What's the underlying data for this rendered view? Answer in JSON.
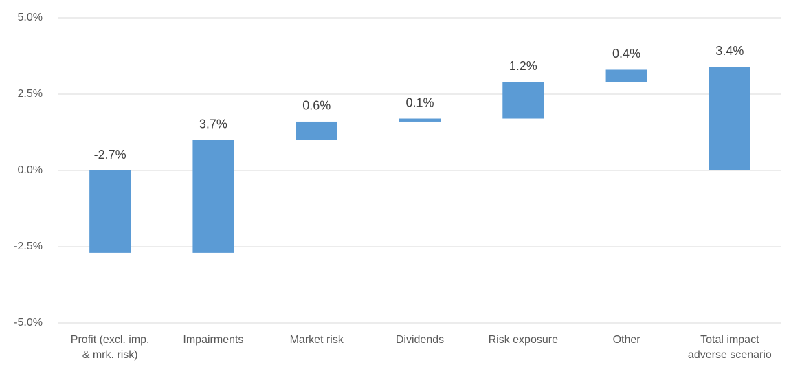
{
  "chart_data": {
    "type": "waterfall",
    "categories": [
      "Profit (excl. imp. & mrk. risk)",
      "Impairments",
      "Market risk",
      "Dividends",
      "Risk exposure",
      "Other",
      "Total impact adverse scenario"
    ],
    "values": [
      -2.7,
      3.7,
      0.6,
      0.1,
      1.2,
      0.4,
      3.4
    ],
    "value_labels": [
      "-2.7%",
      "3.7%",
      "0.6%",
      "0.1%",
      "1.2%",
      "0.4%",
      "3.4%"
    ],
    "is_total": [
      false,
      false,
      false,
      false,
      false,
      false,
      true
    ],
    "color": "#5b9bd5",
    "ylim": [
      -5,
      5
    ],
    "yticks": [
      {
        "value": -5,
        "label": "-5.0%"
      },
      {
        "value": -2.5,
        "label": "-2.5%"
      },
      {
        "value": 0,
        "label": "0.0%"
      },
      {
        "value": 2.5,
        "label": "2.5%"
      },
      {
        "value": 5,
        "label": "5.0%"
      }
    ],
    "grid": true
  }
}
